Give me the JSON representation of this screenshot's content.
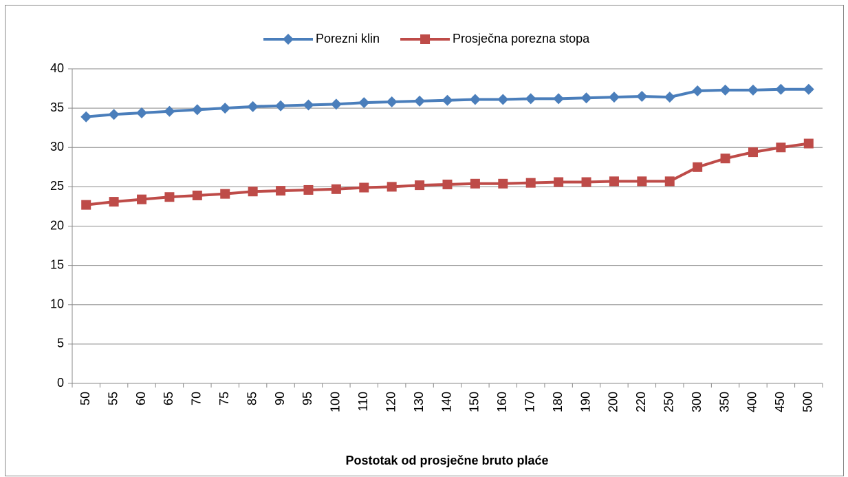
{
  "chart_data": {
    "type": "line",
    "x_label": "Postotak od prosječne bruto plaće",
    "categories": [
      "50",
      "55",
      "60",
      "65",
      "70",
      "75",
      "85",
      "90",
      "95",
      "100",
      "110",
      "120",
      "130",
      "140",
      "150",
      "160",
      "170",
      "180",
      "190",
      "200",
      "220",
      "250",
      "300",
      "350",
      "400",
      "450",
      "500"
    ],
    "series": [
      {
        "name": "Porezni klin",
        "color": "#4a7ebb",
        "marker": "diamond",
        "values": [
          33.9,
          34.2,
          34.4,
          34.6,
          34.8,
          35.0,
          35.2,
          35.3,
          35.4,
          35.5,
          35.7,
          35.8,
          35.9,
          36.0,
          36.1,
          36.1,
          36.2,
          36.2,
          36.3,
          36.4,
          36.5,
          36.4,
          37.2,
          37.3,
          37.3,
          37.4,
          37.4
        ]
      },
      {
        "name": "Prosječna porezna stopa",
        "color": "#be4b48",
        "marker": "square",
        "values": [
          22.7,
          23.1,
          23.4,
          23.7,
          23.9,
          24.1,
          24.4,
          24.5,
          24.6,
          24.7,
          24.9,
          25.0,
          25.2,
          25.3,
          25.4,
          25.4,
          25.5,
          25.6,
          25.6,
          25.7,
          25.7,
          25.7,
          27.5,
          28.6,
          29.4,
          30.0,
          30.5
        ]
      }
    ],
    "ylim": [
      0,
      40
    ],
    "yticks": [
      0,
      5,
      10,
      15,
      20,
      25,
      30,
      35,
      40
    ],
    "grid": true,
    "legend": "top"
  }
}
